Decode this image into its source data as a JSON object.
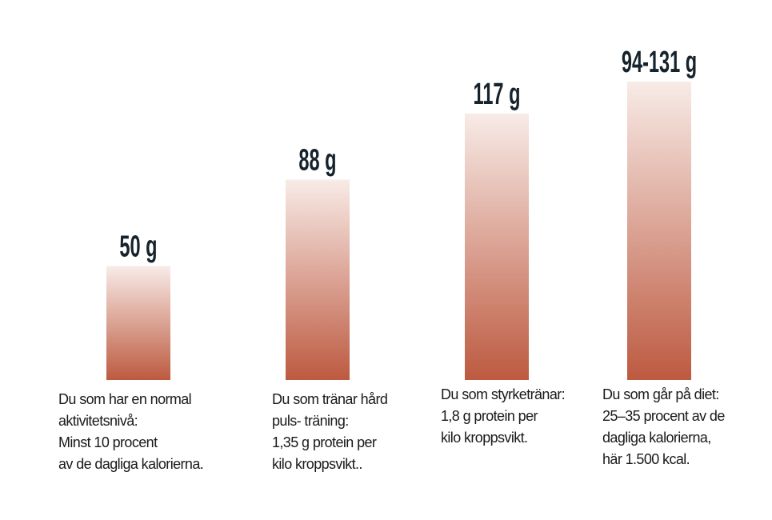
{
  "chart_data": {
    "type": "bar",
    "categories": [
      "Du som har en normal\naktivitetsnivå:\nMinst 10 procent\nav de dagliga kalorierna.",
      "Du som tränar hård\npuls- träning:\n1,35 g protein per\nkilo kroppsvikt..",
      "Du som  styrketränar:\n1,8 g protein per\nkilo kroppsvikt.",
      "Du som går  på diet:\n25–35 procent av de\ndagliga kalorierna,\nhär 1.500 kcal."
    ],
    "values": [
      50,
      88,
      117,
      131
    ],
    "value_labels": [
      "50 g",
      "88 g",
      "117 g",
      "94-131 g"
    ],
    "color": "#bd5a40"
  }
}
